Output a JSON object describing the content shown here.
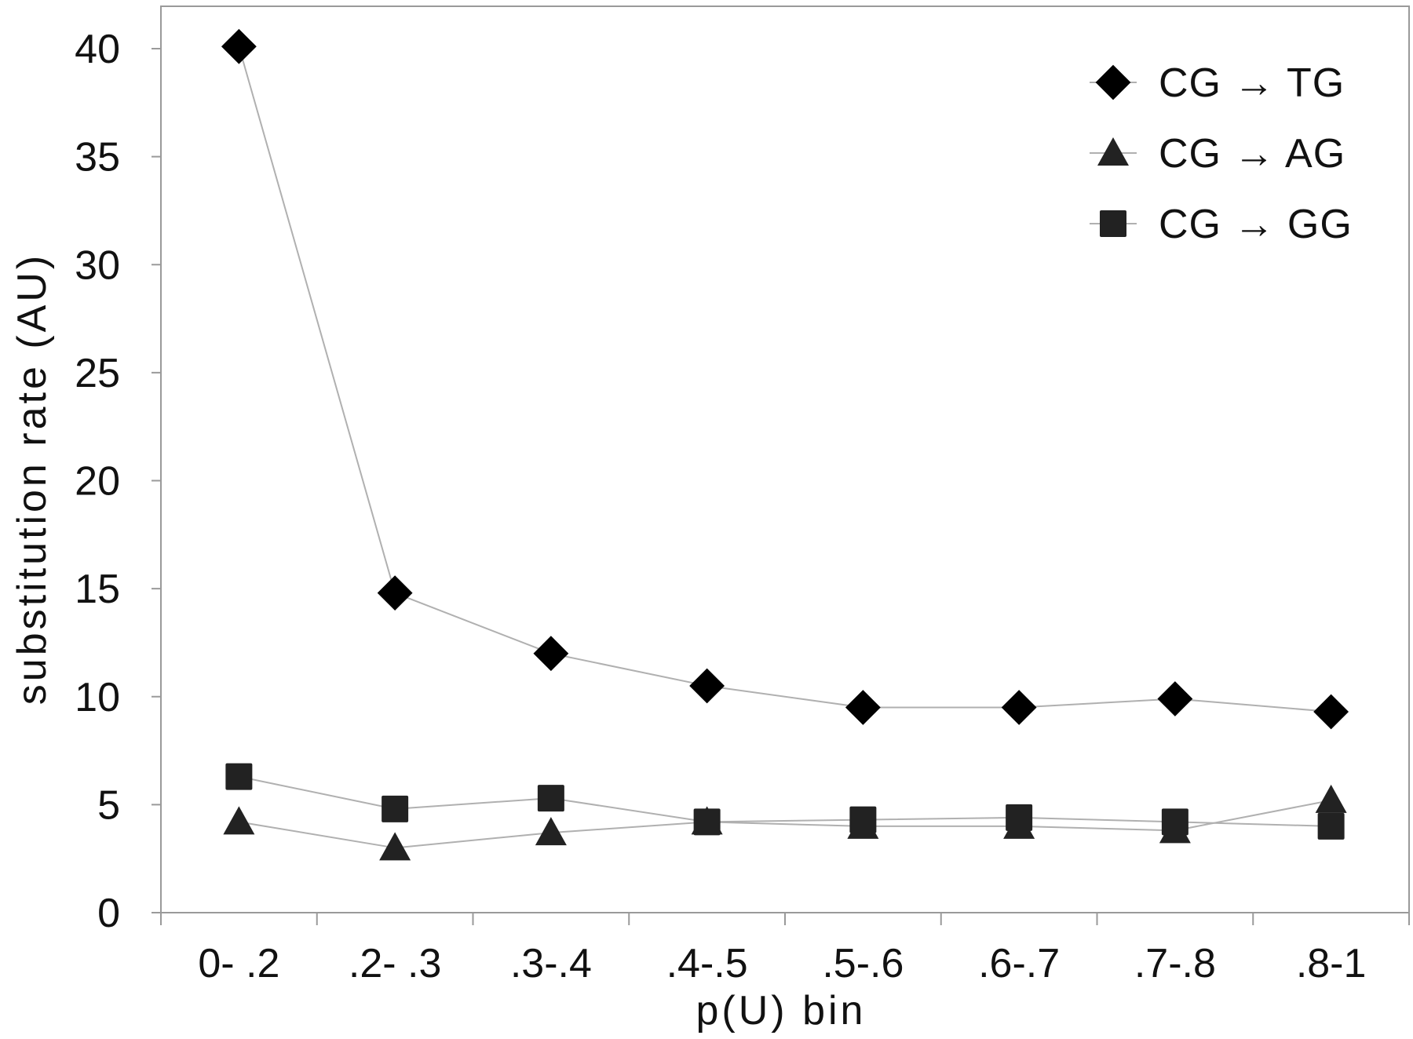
{
  "chart_data": {
    "type": "line",
    "categories": [
      "0- .2",
      ".2- .3",
      ".3-.4",
      ".4-.5",
      ".5-.6",
      ".6-.7",
      ".7-.8",
      ".8-1"
    ],
    "series": [
      {
        "name": "CG → TG",
        "marker": "diamond",
        "color": "#000000",
        "values": [
          40.1,
          14.8,
          12.0,
          10.5,
          9.5,
          9.5,
          9.9,
          9.3
        ]
      },
      {
        "name": "CG → AG",
        "marker": "triangle",
        "color": "#222222",
        "values": [
          4.2,
          3.0,
          3.7,
          4.2,
          4.0,
          4.0,
          3.8,
          5.2
        ]
      },
      {
        "name": "CG → GG",
        "marker": "square",
        "color": "#222222",
        "values": [
          6.3,
          4.8,
          5.3,
          4.2,
          4.3,
          4.4,
          4.2,
          4.0
        ]
      }
    ],
    "title": "",
    "xlabel": "p(U) bin",
    "ylabel": "substitution rate (AU)",
    "ylim": [
      0,
      40
    ],
    "yticks": [
      0,
      5,
      10,
      15,
      20,
      25,
      30,
      35,
      40
    ],
    "grid": false,
    "legend_position": "top-right",
    "line_color": "#b0b0b0",
    "axis_color": "#9a9a9a"
  }
}
